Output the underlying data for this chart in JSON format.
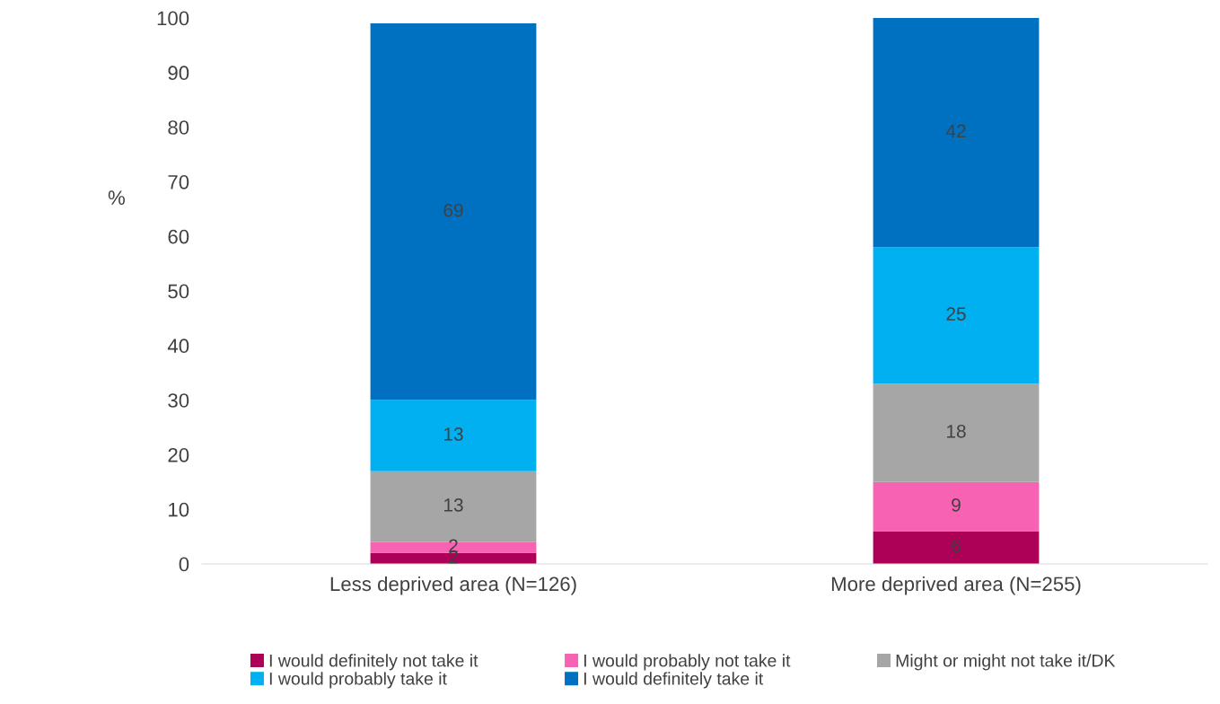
{
  "chart_data": {
    "type": "bar",
    "stacked": true,
    "ylabel": "%",
    "categories": [
      "Less deprived area (N=126)",
      "More deprived area (N=255)"
    ],
    "series": [
      {
        "name": "I would definitely not take it",
        "color": "#ad0057",
        "values": [
          2,
          6
        ]
      },
      {
        "name": "I would probably not take it",
        "color": "#f762b2",
        "values": [
          2,
          9
        ]
      },
      {
        "name": "Might or might not take it/DK",
        "color": "#a6a6a6",
        "values": [
          13,
          18
        ]
      },
      {
        "name": "I would probably take it",
        "color": "#00b0f0",
        "values": [
          13,
          25
        ]
      },
      {
        "name": "I would definitely take it",
        "color": "#0070c0",
        "values": [
          69,
          42
        ]
      }
    ],
    "ylim": [
      0,
      100
    ],
    "yticks": [
      0,
      10,
      20,
      30,
      40,
      50,
      60,
      70,
      80,
      90,
      100
    ],
    "data_labels": true,
    "grid": false,
    "legend": "bottom"
  }
}
